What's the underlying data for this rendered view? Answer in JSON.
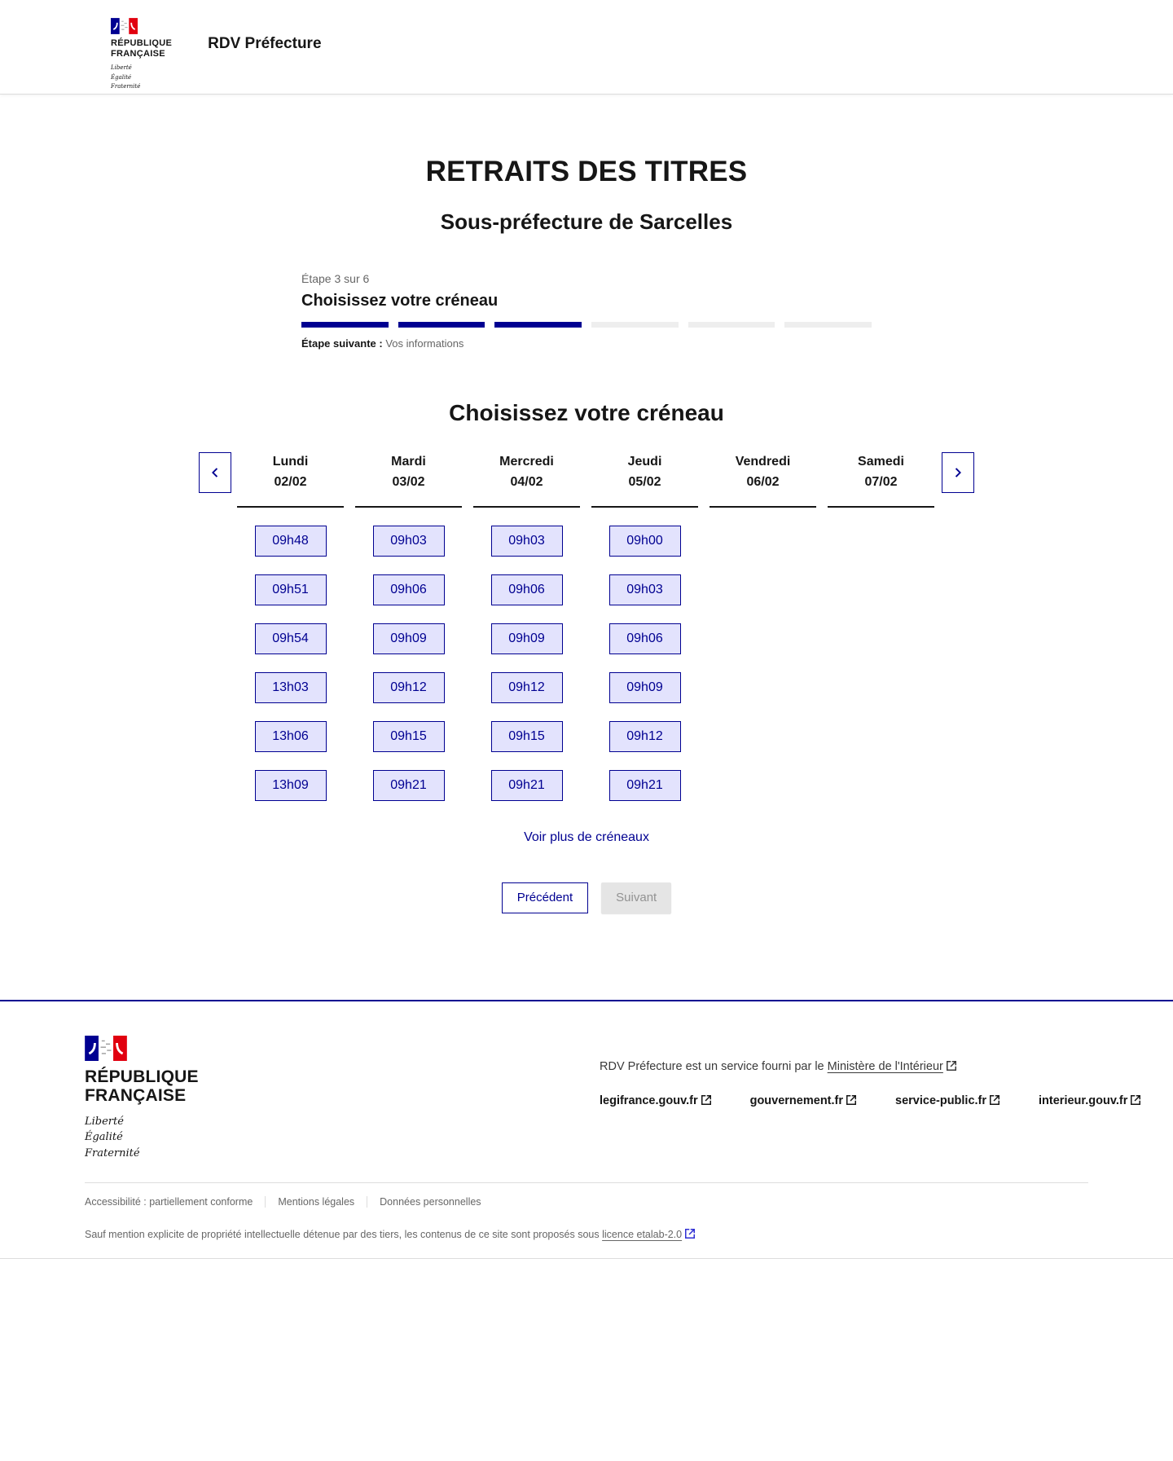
{
  "colors": {
    "accent_blue": "#000091",
    "flag_red": "#E1000F",
    "slot_background": "#E3E3FD",
    "text_dark": "#161616",
    "text_gray": "#666666",
    "progress_empty": "#EEEEEE",
    "disabled_background": "#E5E5E5",
    "disabled_text": "#929292",
    "divider": "#DDDDDD"
  },
  "header": {
    "logo": {
      "institution": "RÉPUBLIQUE\nFRANÇAISE",
      "motto": "Liberté\nÉgalité\nFraternité"
    },
    "service_title": "RDV Préfecture"
  },
  "main": {
    "page_title": "RETRAITS DES TITRES",
    "location_title": "Sous-préfecture de Sarcelles",
    "stepper": {
      "step_label": "Étape 3 sur 6",
      "current_step": 3,
      "total_steps": 6,
      "current_step_title": "Choisissez votre créneau",
      "next_step_label": "Étape suivante :",
      "next_step_value": "Vos informations"
    },
    "section_title": "Choisissez votre créneau",
    "calendar": {
      "days": [
        {
          "name": "Lundi",
          "date": "02/02",
          "slots": [
            "09h48",
            "09h51",
            "09h54",
            "13h03",
            "13h06",
            "13h09"
          ]
        },
        {
          "name": "Mardi",
          "date": "03/02",
          "slots": [
            "09h03",
            "09h06",
            "09h09",
            "09h12",
            "09h15",
            "09h21"
          ]
        },
        {
          "name": "Mercredi",
          "date": "04/02",
          "slots": [
            "09h03",
            "09h06",
            "09h09",
            "09h12",
            "09h15",
            "09h21"
          ]
        },
        {
          "name": "Jeudi",
          "date": "05/02",
          "slots": [
            "09h00",
            "09h03",
            "09h06",
            "09h09",
            "09h12",
            "09h21"
          ]
        },
        {
          "name": "Vendredi",
          "date": "06/02",
          "slots": []
        },
        {
          "name": "Samedi",
          "date": "07/02",
          "slots": []
        }
      ]
    },
    "more_slots_link": "Voir plus de créneaux",
    "previous_button": "Précédent",
    "next_button": "Suivant"
  },
  "footer": {
    "logo": {
      "institution": "RÉPUBLIQUE\nFRANÇAISE",
      "motto": "Liberté\nÉgalité\nFraternité"
    },
    "service_text": "RDV Préfecture est un service fourni par le",
    "service_link_label": "Ministère de l'Intérieur",
    "site_links": [
      "legifrance.gouv.fr",
      "gouvernement.fr",
      "service-public.fr",
      "interieur.gouv.fr"
    ],
    "legal_links": [
      "Accessibilité : partiellement conforme",
      "Mentions légales",
      "Données personnelles"
    ],
    "licence_text": "Sauf mention explicite de propriété intellectuelle détenue par des tiers, les contenus de ce site sont proposés sous",
    "licence_link_label": "licence etalab-2.0"
  }
}
